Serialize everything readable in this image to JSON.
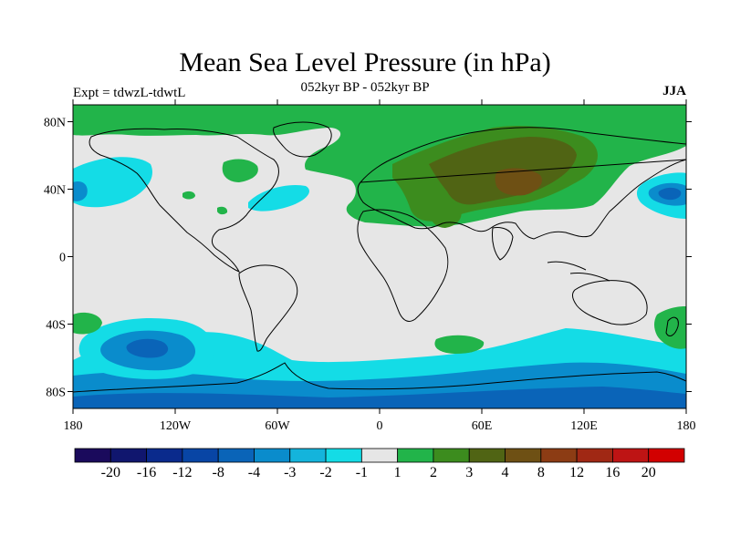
{
  "title": "Mean Sea Level Pressure (in hPa)",
  "subtitle": "052kyr BP - 052kyr BP",
  "experiment": "Expt = tdwzL-tdwtL",
  "season": "JJA",
  "map": {
    "lon_range": [
      -180,
      180
    ],
    "lat_range": [
      -90,
      90
    ],
    "lat_ticks": [
      {
        "value": 80,
        "label": "80N"
      },
      {
        "value": 40,
        "label": "40N"
      },
      {
        "value": 0,
        "label": "0"
      },
      {
        "value": -40,
        "label": "40S"
      },
      {
        "value": -80,
        "label": "80S"
      }
    ],
    "lon_ticks": [
      {
        "value": -180,
        "label": "180"
      },
      {
        "value": -120,
        "label": "120W"
      },
      {
        "value": -60,
        "label": "60W"
      },
      {
        "value": 0,
        "label": "0"
      },
      {
        "value": 60,
        "label": "60E"
      },
      {
        "value": 120,
        "label": "120E"
      },
      {
        "value": 180,
        "label": "180"
      }
    ],
    "background_color": "#e6e6e6"
  },
  "colorbar": {
    "colors": [
      "#1a0a5c",
      "#10166e",
      "#0a2a8c",
      "#0845a5",
      "#0a64b8",
      "#0a8ccc",
      "#14b4dc",
      "#14dce6",
      "#e6e6e6",
      "#22b44a",
      "#3c8c1e",
      "#506414",
      "#6e5014",
      "#8c3c14",
      "#a02814",
      "#be1414",
      "#d20000"
    ],
    "labels": [
      "-20",
      "-16",
      "-12",
      "-8",
      "-4",
      "-3",
      "-2",
      "-1",
      "1",
      "2",
      "3",
      "4",
      "8",
      "12",
      "16",
      "20"
    ]
  }
}
